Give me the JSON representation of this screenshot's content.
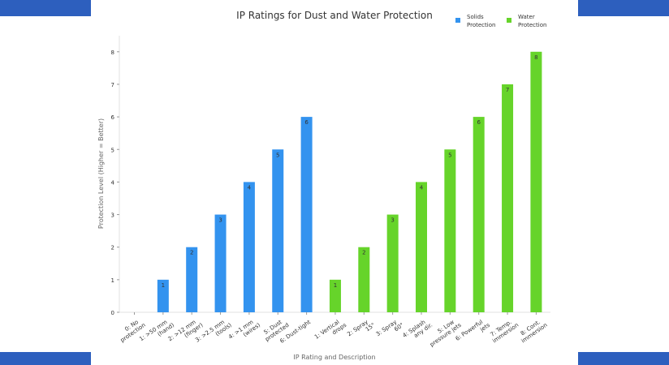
{
  "chart_data": {
    "type": "bar",
    "title": "IP Ratings for Dust and Water Protection",
    "xlabel": "IP Rating and Description",
    "ylabel": "Protection Level (Higher = Better)",
    "ylim": [
      0,
      8.4
    ],
    "yticks": [
      0,
      1,
      2,
      3,
      4,
      5,
      6,
      7,
      8
    ],
    "grid": false,
    "legend_position": "top-right",
    "categories": [
      [
        "0: No",
        "protection"
      ],
      [
        "1: >50 mm",
        "(hand)"
      ],
      [
        "2: >12 mm",
        "(finger)"
      ],
      [
        "3: >2.5 mm",
        "(tools)"
      ],
      [
        "4: >1 mm",
        "(wires)"
      ],
      [
        "5: Dust",
        "protected"
      ],
      [
        "6: Dust-tight"
      ],
      [
        "1: Vertical",
        "drops"
      ],
      [
        "2: Spray",
        "15°"
      ],
      [
        "3: Spray",
        "60°"
      ],
      [
        "4: Splash",
        "any dir."
      ],
      [
        "5: Low",
        "pressure jets"
      ],
      [
        "6: Powerful",
        "jets"
      ],
      [
        "7: Temp.",
        "immersion"
      ],
      [
        "8: Cont.",
        "immersion"
      ]
    ],
    "series": [
      {
        "name": [
          "Solids",
          "Protection"
        ],
        "color": "#3393ef",
        "values": [
          0,
          1,
          2,
          3,
          4,
          5,
          6,
          null,
          null,
          null,
          null,
          null,
          null,
          null,
          null
        ]
      },
      {
        "name": [
          "Water",
          "Protection"
        ],
        "color": "#66d42a",
        "values": [
          null,
          null,
          null,
          null,
          null,
          null,
          null,
          1,
          2,
          3,
          4,
          5,
          6,
          7,
          8
        ]
      }
    ]
  }
}
